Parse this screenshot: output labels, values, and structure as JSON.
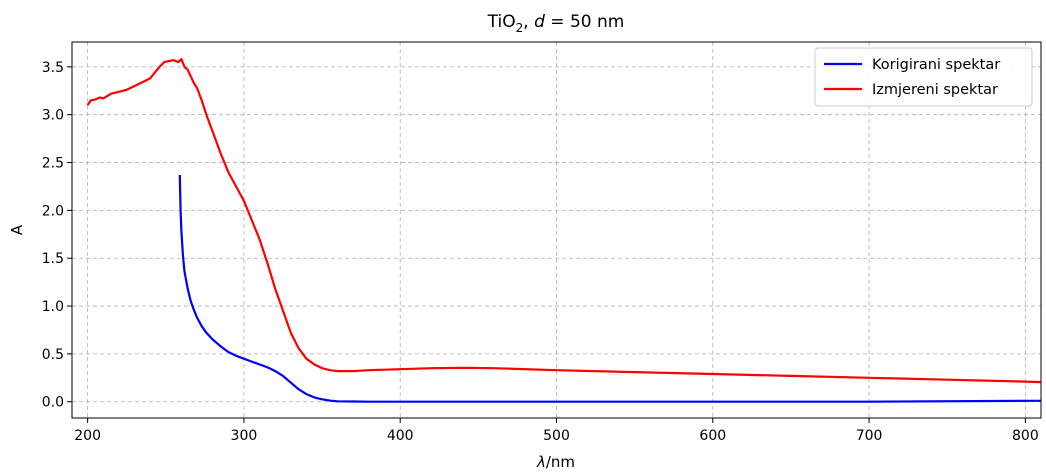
{
  "chart_data": {
    "type": "line",
    "title": {
      "main": "TiO",
      "subscript": "2",
      "rest_prefix": ", ",
      "italic_var": "d",
      "rest": " = 50 nm"
    },
    "xlabel": {
      "italic": "λ",
      "rest": "/nm"
    },
    "ylabel": "A",
    "xlim": [
      190,
      810
    ],
    "ylim": [
      -0.17,
      3.76
    ],
    "xticks": [
      200,
      300,
      400,
      500,
      600,
      700,
      800
    ],
    "yticks": [
      0.0,
      0.5,
      1.0,
      1.5,
      2.0,
      2.5,
      3.0,
      3.5
    ],
    "ytick_labels": [
      "0.0",
      "0.5",
      "1.0",
      "1.5",
      "2.0",
      "2.5",
      "3.0",
      "3.5"
    ],
    "grid": true,
    "legend_position": "top-right",
    "series": [
      {
        "name": "Korigirani spektar",
        "color": "#0000ff",
        "x": [
          259,
          259.5,
          260,
          261,
          262,
          264,
          266,
          268,
          270,
          273,
          276,
          280,
          285,
          290,
          295,
          300,
          305,
          310,
          315,
          320,
          325,
          330,
          335,
          340,
          345,
          350,
          355,
          360,
          370,
          380,
          400,
          450,
          500,
          600,
          700,
          800,
          810
        ],
        "y": [
          2.37,
          2.0,
          1.78,
          1.52,
          1.36,
          1.18,
          1.05,
          0.96,
          0.88,
          0.79,
          0.72,
          0.65,
          0.58,
          0.52,
          0.48,
          0.45,
          0.42,
          0.39,
          0.36,
          0.32,
          0.27,
          0.2,
          0.13,
          0.08,
          0.045,
          0.025,
          0.012,
          0.005,
          0.002,
          0.0,
          0.0,
          0.0,
          0.0,
          0.0,
          0.0,
          0.01,
          0.01
        ]
      },
      {
        "name": "Izmjereni spektar",
        "color": "#ff0000",
        "x": [
          200,
          202,
          205,
          208,
          210,
          215,
          220,
          225,
          230,
          235,
          240,
          243,
          246,
          249,
          252,
          255,
          258,
          260,
          262,
          264,
          266,
          268,
          270,
          273,
          276,
          280,
          285,
          290,
          295,
          300,
          305,
          310,
          315,
          320,
          325,
          330,
          335,
          340,
          345,
          350,
          355,
          360,
          370,
          380,
          400,
          420,
          440,
          460,
          500,
          550,
          600,
          650,
          700,
          750,
          800,
          810
        ],
        "y": [
          3.1,
          3.15,
          3.16,
          3.18,
          3.17,
          3.22,
          3.24,
          3.26,
          3.3,
          3.34,
          3.38,
          3.44,
          3.5,
          3.55,
          3.56,
          3.57,
          3.55,
          3.58,
          3.5,
          3.47,
          3.4,
          3.33,
          3.28,
          3.15,
          3.0,
          2.82,
          2.6,
          2.4,
          2.25,
          2.1,
          1.9,
          1.7,
          1.45,
          1.18,
          0.95,
          0.72,
          0.56,
          0.45,
          0.39,
          0.35,
          0.33,
          0.32,
          0.32,
          0.33,
          0.34,
          0.35,
          0.355,
          0.35,
          0.33,
          0.31,
          0.29,
          0.27,
          0.25,
          0.23,
          0.21,
          0.205
        ]
      }
    ]
  }
}
